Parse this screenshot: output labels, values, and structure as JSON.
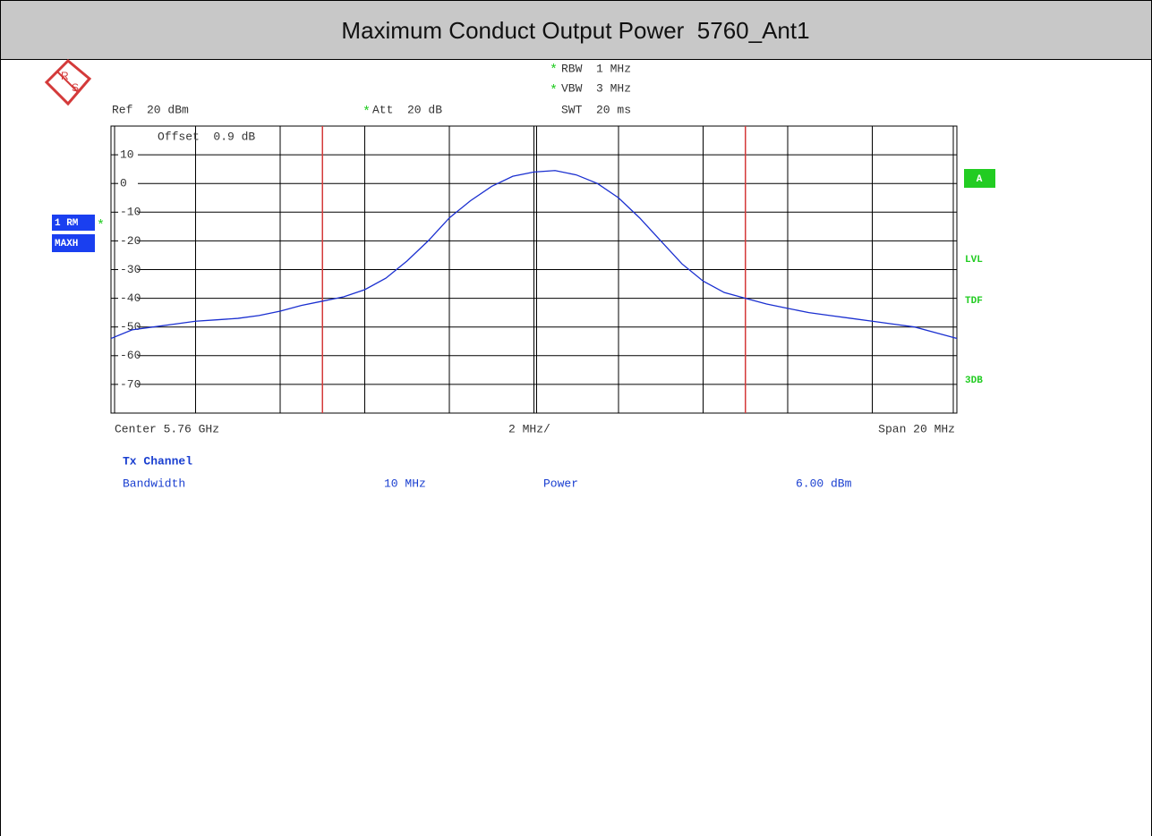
{
  "chart_data": {
    "type": "line",
    "title": "Maximum Conduct Output Power  5760_Ant1",
    "logo": [
      "R",
      "S"
    ],
    "marker": "*",
    "settings": {
      "rbw": "RBW  1 MHz",
      "vbw": "VBW  3 MHz",
      "swt": "SWT  20 ms",
      "ref": "Ref  20 dBm",
      "att": "Att  20 dB",
      "offset": "Offset  0.9 dB",
      "trace": "1 RM",
      "mode": "MAXH",
      "side": [
        "A",
        "LVL",
        "TDF",
        "3DB"
      ]
    },
    "footer": {
      "center": "Center 5.76 GHz",
      "div": "2 MHz/",
      "span": "Span 20 MHz"
    },
    "results": {
      "heading": "Tx Channel",
      "bw_label": "Bandwidth",
      "bw": "10 MHz",
      "power_label": "Power",
      "power": "6.00 dBm"
    },
    "xlim": [
      5.75,
      5.77
    ],
    "ylim": [
      -80,
      20
    ],
    "yticks": [
      10,
      0,
      -10,
      -20,
      -30,
      -40,
      -50,
      -60,
      -70
    ],
    "grid": true,
    "channel_lines": [
      5.755,
      5.765
    ],
    "channel_color": "#d43a3a",
    "series": [
      {
        "color": "#1a2fd0",
        "x": [
          5.75,
          5.7505,
          5.751,
          5.7515,
          5.752,
          5.7525,
          5.753,
          5.7535,
          5.754,
          5.7545,
          5.755,
          5.7555,
          5.756,
          5.7565,
          5.757,
          5.7575,
          5.758,
          5.7585,
          5.759,
          5.7595,
          5.76,
          5.7605,
          5.761,
          5.7615,
          5.762,
          5.7625,
          5.763,
          5.7635,
          5.764,
          5.7645,
          5.765,
          5.7655,
          5.766,
          5.7665,
          5.767,
          5.7675,
          5.768,
          5.7685,
          5.769,
          5.7695,
          5.77
        ],
        "values": [
          -54,
          -51,
          -50,
          -49,
          -48,
          -47.5,
          -47,
          -46,
          -44.5,
          -42.5,
          -41,
          -39.5,
          -37,
          -33,
          -27,
          -20,
          -12,
          -6,
          -1,
          2.5,
          4,
          4.5,
          3,
          0,
          -5,
          -12,
          -20,
          -28,
          -34,
          -38,
          -40,
          -42,
          -43.5,
          -45,
          -46,
          -47,
          -48,
          -49,
          -50,
          -52,
          -54
        ]
      }
    ]
  }
}
